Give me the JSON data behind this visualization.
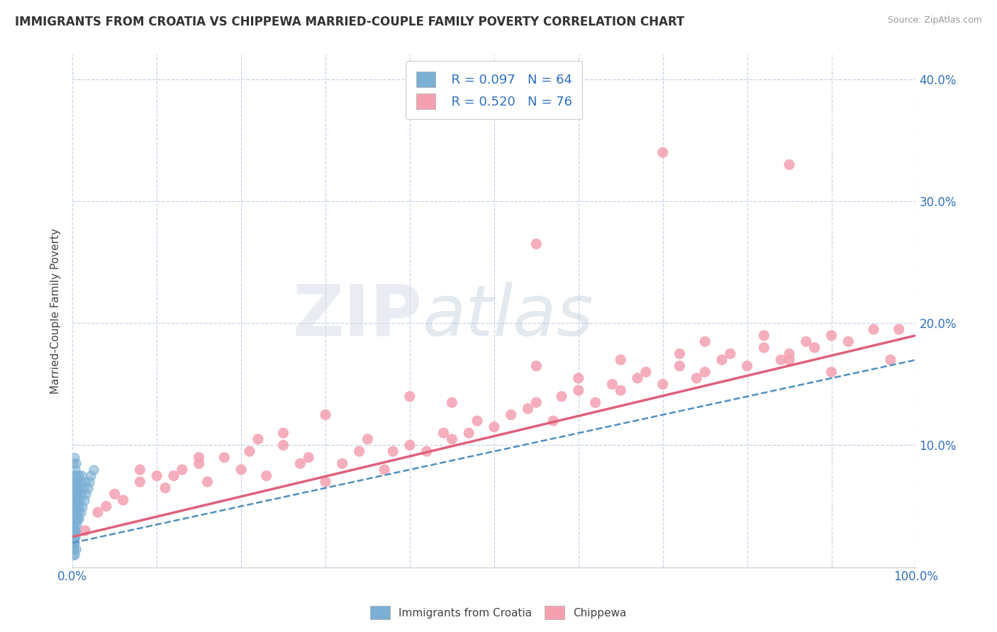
{
  "title": "IMMIGRANTS FROM CROATIA VS CHIPPEWA MARRIED-COUPLE FAMILY POVERTY CORRELATION CHART",
  "source": "Source: ZipAtlas.com",
  "ylabel": "Married-Couple Family Poverty",
  "xlim": [
    0,
    100
  ],
  "ylim": [
    0,
    42
  ],
  "x_ticks": [
    0,
    10,
    20,
    30,
    40,
    50,
    60,
    70,
    80,
    90,
    100
  ],
  "y_ticks": [
    0,
    10,
    20,
    30,
    40
  ],
  "background_color": "#ffffff",
  "grid_color": "#c8d4e8",
  "series1_name": "Immigrants from Croatia",
  "series1_color": "#7bafd4",
  "series1_line_color": "#5090c0",
  "series2_name": "Chippewa",
  "series2_color": "#f4a0b0",
  "series2_line_color": "#e0607a",
  "legend_color": "#3070c0",
  "watermark_zip": "ZIP",
  "watermark_atlas": "atlas",
  "croatia_x": [
    0.05,
    0.08,
    0.1,
    0.1,
    0.12,
    0.15,
    0.15,
    0.18,
    0.2,
    0.2,
    0.22,
    0.25,
    0.25,
    0.28,
    0.3,
    0.3,
    0.32,
    0.35,
    0.35,
    0.38,
    0.4,
    0.4,
    0.42,
    0.45,
    0.48,
    0.5,
    0.5,
    0.52,
    0.55,
    0.58,
    0.6,
    0.62,
    0.65,
    0.68,
    0.7,
    0.72,
    0.75,
    0.8,
    0.85,
    0.9,
    0.95,
    1.0,
    1.1,
    1.2,
    1.3,
    1.4,
    1.5,
    1.6,
    1.8,
    2.0,
    2.2,
    2.5,
    0.05,
    0.08,
    0.1,
    0.12,
    0.15,
    0.18,
    0.2,
    0.22,
    0.25,
    0.3,
    0.35,
    0.4
  ],
  "croatia_y": [
    3.5,
    2.0,
    4.5,
    8.5,
    5.0,
    6.5,
    3.0,
    7.0,
    4.0,
    9.0,
    5.5,
    3.5,
    7.5,
    6.0,
    4.5,
    8.0,
    5.0,
    6.5,
    3.0,
    7.0,
    4.0,
    8.5,
    5.5,
    6.0,
    3.5,
    7.5,
    4.5,
    5.0,
    6.5,
    4.0,
    7.0,
    5.5,
    4.5,
    6.0,
    5.0,
    7.5,
    4.0,
    6.5,
    5.5,
    7.0,
    4.5,
    6.0,
    7.5,
    5.0,
    6.5,
    5.5,
    7.0,
    6.0,
    6.5,
    7.0,
    7.5,
    8.0,
    1.5,
    2.5,
    1.0,
    2.0,
    3.0,
    1.5,
    2.5,
    1.0,
    2.0,
    3.0,
    2.5,
    1.5
  ],
  "chippewa_x": [
    1.5,
    3.0,
    5.0,
    6.0,
    8.0,
    10.0,
    11.0,
    13.0,
    15.0,
    16.0,
    18.0,
    20.0,
    21.0,
    23.0,
    25.0,
    27.0,
    28.0,
    30.0,
    32.0,
    34.0,
    35.0,
    37.0,
    38.0,
    40.0,
    42.0,
    44.0,
    45.0,
    47.0,
    48.0,
    50.0,
    52.0,
    54.0,
    55.0,
    57.0,
    58.0,
    60.0,
    62.0,
    64.0,
    65.0,
    67.0,
    68.0,
    70.0,
    72.0,
    74.0,
    75.0,
    77.0,
    78.0,
    80.0,
    82.0,
    84.0,
    85.0,
    87.0,
    88.0,
    90.0,
    92.0,
    95.0,
    97.0,
    4.0,
    8.0,
    15.0,
    22.0,
    30.0,
    40.0,
    55.0,
    65.0,
    75.0,
    85.0,
    12.0,
    25.0,
    45.0,
    60.0,
    72.0,
    82.0,
    90.0,
    98.0,
    55.0,
    70.0,
    85.0
  ],
  "chippewa_y": [
    3.0,
    4.5,
    6.0,
    5.5,
    7.0,
    7.5,
    6.5,
    8.0,
    8.5,
    7.0,
    9.0,
    8.0,
    9.5,
    7.5,
    10.0,
    8.5,
    9.0,
    7.0,
    8.5,
    9.5,
    10.5,
    8.0,
    9.5,
    10.0,
    9.5,
    11.0,
    10.5,
    11.0,
    12.0,
    11.5,
    12.5,
    13.0,
    13.5,
    12.0,
    14.0,
    14.5,
    13.5,
    15.0,
    14.5,
    15.5,
    16.0,
    15.0,
    16.5,
    15.5,
    16.0,
    17.0,
    17.5,
    16.5,
    18.0,
    17.0,
    17.5,
    18.5,
    18.0,
    19.0,
    18.5,
    19.5,
    17.0,
    5.0,
    8.0,
    9.0,
    10.5,
    12.5,
    14.0,
    16.5,
    17.0,
    18.5,
    17.0,
    7.5,
    11.0,
    13.5,
    15.5,
    17.5,
    19.0,
    16.0,
    19.5,
    26.5,
    34.0,
    33.0
  ]
}
